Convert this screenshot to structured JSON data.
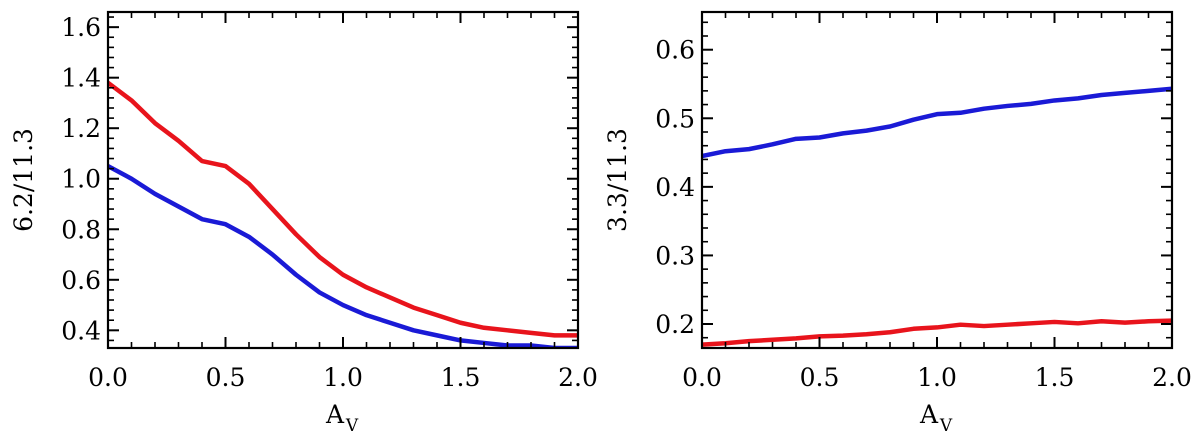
{
  "chart_data": [
    {
      "type": "line",
      "xlabel": "A",
      "xlabel_subscript": "V",
      "ylabel": "6.2/11.3",
      "xlim": [
        0.0,
        2.0
      ],
      "ylim": [
        0.33,
        1.66
      ],
      "xticks": [
        "0.0",
        "0.5",
        "1.0",
        "1.5",
        "2.0"
      ],
      "yticks": [
        "0.4",
        "0.6",
        "0.8",
        "1.0",
        "1.2",
        "1.4",
        "1.6"
      ],
      "grid": false,
      "series": [
        {
          "color": "#e8141c",
          "x": [
            0.0,
            0.1,
            0.2,
            0.3,
            0.4,
            0.5,
            0.6,
            0.7,
            0.8,
            0.9,
            1.0,
            1.1,
            1.2,
            1.3,
            1.4,
            1.5,
            1.6,
            1.7,
            1.8,
            1.9,
            2.0
          ],
          "values": [
            1.38,
            1.31,
            1.22,
            1.15,
            1.07,
            1.05,
            0.98,
            0.88,
            0.78,
            0.69,
            0.62,
            0.57,
            0.53,
            0.49,
            0.46,
            0.43,
            0.41,
            0.4,
            0.39,
            0.38,
            0.38
          ]
        },
        {
          "color": "#1a1ad6",
          "x": [
            0.0,
            0.1,
            0.2,
            0.3,
            0.4,
            0.5,
            0.6,
            0.7,
            0.8,
            0.9,
            1.0,
            1.1,
            1.2,
            1.3,
            1.4,
            1.5,
            1.6,
            1.7,
            1.8,
            1.9,
            2.0
          ],
          "values": [
            1.05,
            1.0,
            0.94,
            0.89,
            0.84,
            0.82,
            0.77,
            0.7,
            0.62,
            0.55,
            0.5,
            0.46,
            0.43,
            0.4,
            0.38,
            0.36,
            0.35,
            0.34,
            0.34,
            0.33,
            0.33
          ]
        }
      ]
    },
    {
      "type": "line",
      "xlabel": "A",
      "xlabel_subscript": "V",
      "ylabel": "3.3/11.3",
      "xlim": [
        0.0,
        2.0
      ],
      "ylim": [
        0.165,
        0.655
      ],
      "xticks": [
        "0.0",
        "0.5",
        "1.0",
        "1.5",
        "2.0"
      ],
      "yticks": [
        "0.2",
        "0.3",
        "0.4",
        "0.5",
        "0.6"
      ],
      "grid": false,
      "series": [
        {
          "color": "#1a1ad6",
          "x": [
            0.0,
            0.1,
            0.2,
            0.3,
            0.4,
            0.5,
            0.6,
            0.7,
            0.8,
            0.9,
            1.0,
            1.1,
            1.2,
            1.3,
            1.4,
            1.5,
            1.6,
            1.7,
            1.8,
            1.9,
            2.0
          ],
          "values": [
            0.445,
            0.452,
            0.455,
            0.462,
            0.47,
            0.472,
            0.478,
            0.482,
            0.488,
            0.498,
            0.506,
            0.508,
            0.514,
            0.518,
            0.521,
            0.526,
            0.529,
            0.534,
            0.537,
            0.54,
            0.543
          ]
        },
        {
          "color": "#e8141c",
          "x": [
            0.0,
            0.1,
            0.2,
            0.3,
            0.4,
            0.5,
            0.6,
            0.7,
            0.8,
            0.9,
            1.0,
            1.1,
            1.2,
            1.3,
            1.4,
            1.5,
            1.6,
            1.7,
            1.8,
            1.9,
            2.0
          ],
          "values": [
            0.17,
            0.172,
            0.175,
            0.177,
            0.179,
            0.182,
            0.183,
            0.185,
            0.188,
            0.193,
            0.195,
            0.199,
            0.197,
            0.199,
            0.201,
            0.203,
            0.201,
            0.204,
            0.202,
            0.204,
            0.205
          ]
        }
      ]
    }
  ]
}
